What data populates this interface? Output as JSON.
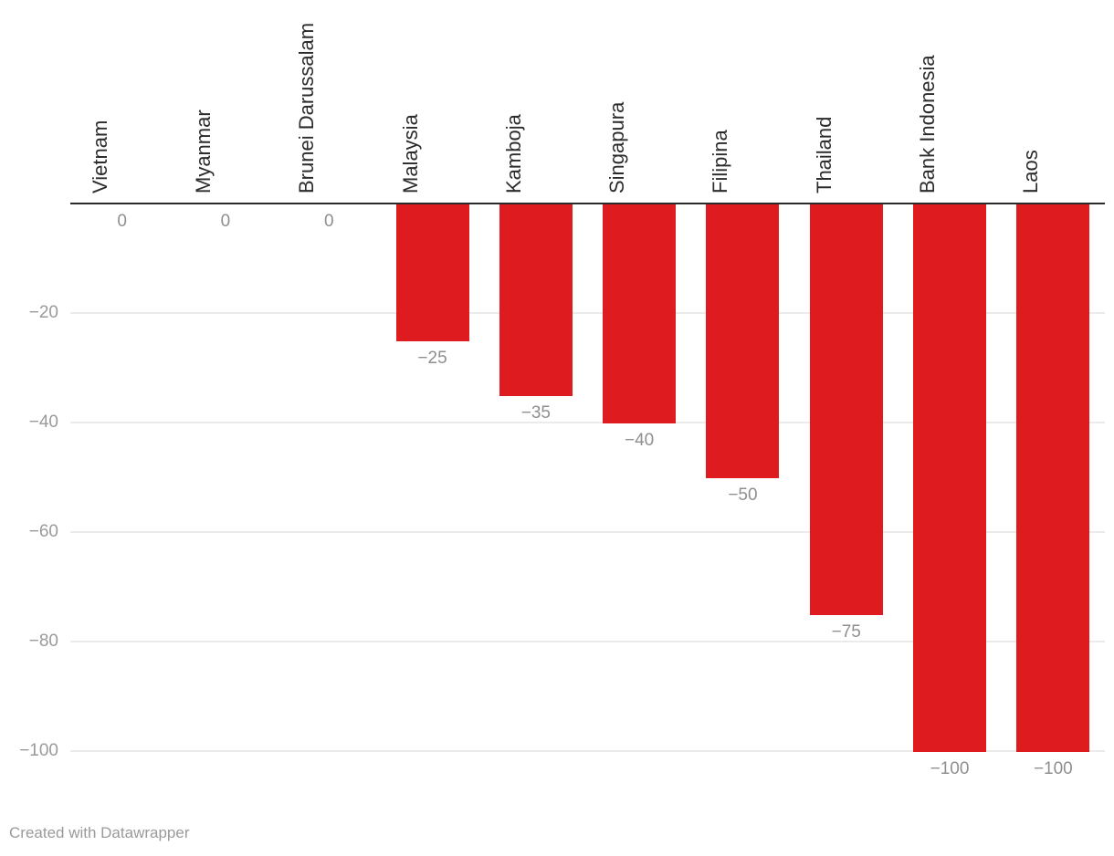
{
  "chart_data": {
    "type": "bar",
    "title": "",
    "categories": [
      "Vietnam",
      "Myanmar",
      "Brunei Darussalam",
      "Malaysia",
      "Kamboja",
      "Singapura",
      "Filipina",
      "Thailand",
      "Bank Indonesia",
      "Laos"
    ],
    "values": [
      0,
      0,
      0,
      -25,
      -35,
      -40,
      -50,
      -75,
      -100,
      -100
    ],
    "value_labels": [
      "0",
      "0",
      "0",
      "−25",
      "−35",
      "−40",
      "−50",
      "−75",
      "−100",
      "−100"
    ],
    "ticks": [
      -20,
      -40,
      -60,
      -80,
      -100
    ],
    "tick_labels": [
      "−20",
      "−40",
      "−60",
      "−80",
      "−100"
    ],
    "ylim": [
      -100,
      0
    ],
    "grid": true,
    "legend": "none",
    "xlabel": "",
    "ylabel": ""
  },
  "colors": {
    "bar": "#de1b1e",
    "axis_line": "#2a2a2a",
    "grid_line": "#ebebeb",
    "tick_text": "#9a9a9a",
    "value_text": "#8f8f8f",
    "category_text": "#2b2b2b",
    "footer_text": "#9a9a9a"
  },
  "footer": {
    "attribution": "Created with Datawrapper"
  }
}
